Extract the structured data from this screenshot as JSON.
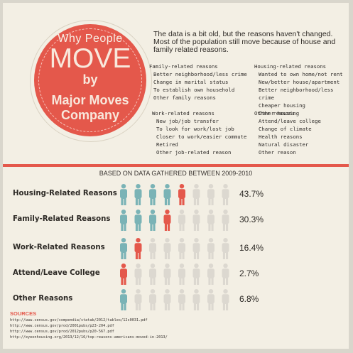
{
  "badge": {
    "line1": "Why People",
    "line2": "MOVE",
    "line3": "by",
    "line4": "Major Moves",
    "line5": "Company"
  },
  "intro": "The data is a bit old, but the reasons haven't changed. Most of the population still move because of house and family related reasons.",
  "lists": {
    "family": {
      "heading": "Family-related reasons",
      "items": [
        "Better neighborhood/less crime",
        "Change in marital status",
        "To establish own household",
        "Other family reasons"
      ]
    },
    "housing": {
      "heading": "Housing-related reasons",
      "items": [
        "Wanted to own home/not rent",
        "New/better house/apartment",
        "Better neighborhood/less crime",
        "Cheaper housing",
        "Other housing"
      ]
    },
    "work": {
      "heading": "Work-related reasons",
      "items": [
        "New job/job transfer",
        "To look for work/lost job",
        "Closer to work/easier commute",
        "Retired",
        "Other job-related reason"
      ]
    },
    "other": {
      "heading": "Other reasons",
      "items": [
        "Attend/leave college",
        "Change of climate",
        "Health reasons",
        "Natural disaster",
        "Other reason"
      ]
    }
  },
  "subtitle": "BASED ON DATA GATHERED BETWEEN 2009-2010",
  "colors": {
    "accent": "#e4584b",
    "teal": "#7ab3b6",
    "empty": "#dcd8d0",
    "background": "#f3efe4"
  },
  "icons": {
    "figure": "person-icon"
  },
  "chart_data": {
    "type": "bar",
    "categories": [
      "Housing-Related Reasons",
      "Family-Related Reasons",
      "Work-Related Reasons",
      "Attend/Leave College",
      "Other Reasons"
    ],
    "values": [
      43.7,
      30.3,
      16.4,
      2.7,
      6.8
    ],
    "value_labels": [
      "43.7%",
      "30.3%",
      "16.4%",
      "2.7%",
      "6.8%"
    ],
    "figure_counts": {
      "teal": [
        4,
        3,
        1,
        0,
        1
      ],
      "red": [
        1,
        1,
        1,
        1,
        0
      ],
      "total": 8
    },
    "title": "BASED ON DATA GATHERED BETWEEN 2009-2010"
  },
  "sources": {
    "heading": "SOURCES",
    "links": [
      "http://www.census.gov/compendia/statab/2012/tables/12s0031.pdf",
      "http://www.census.gov/prod/2001pubs/p23-204.pdf",
      "http://www.census.gov/prod/2012pubs/p20-567.pdf",
      "http://eyeonhousing.org/2013/12/16/top-reasons-americans-moved-in-2013/"
    ]
  }
}
